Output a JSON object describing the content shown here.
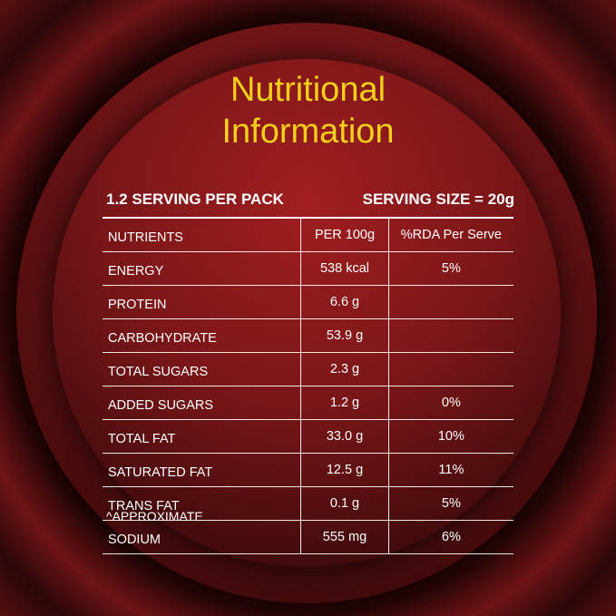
{
  "title_line1": "Nutritional",
  "title_line2": "Information",
  "servings_per_pack": "1.2 SERVING PER PACK",
  "serving_size": "SERVING SIZE = 20g",
  "table": {
    "headers": [
      "NUTRIENTS",
      "PER 100g",
      "%RDA Per Serve"
    ],
    "rows": [
      [
        "ENERGY",
        "538 kcal",
        "5%"
      ],
      [
        "PROTEIN",
        "6.6 g",
        ""
      ],
      [
        "CARBOHYDRATE",
        "53.9 g",
        ""
      ],
      [
        "TOTAL SUGARS",
        "2.3 g",
        ""
      ],
      [
        "ADDED SUGARS",
        "1.2 g",
        "0%"
      ],
      [
        "TOTAL FAT",
        "33.0 g",
        "10%"
      ],
      [
        "SATURATED FAT",
        "12.5 g",
        "11%"
      ],
      [
        "TRANS FAT",
        "0.1 g",
        "5%"
      ],
      [
        "SODIUM",
        "555 mg",
        "6%"
      ]
    ]
  },
  "footnote": "^APPROXIMATE",
  "colors": {
    "title": "#f4cf1c",
    "background_dark": "#2a0607",
    "background_red": "#9a1d1f",
    "text": "#ffffff"
  }
}
